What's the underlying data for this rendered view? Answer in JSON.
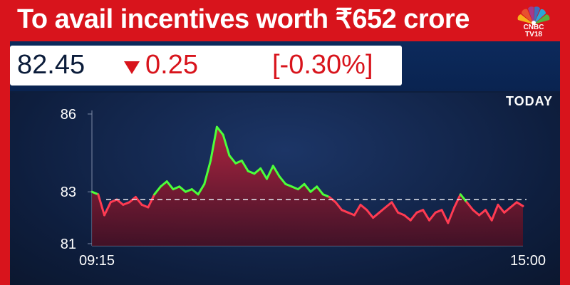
{
  "headline": "To avail incentives worth ₹652 crore",
  "brand": {
    "line1": "CNBC",
    "line2": "TV18"
  },
  "quote": {
    "price": "82.45",
    "change": "0.25",
    "change_pct": "[-0.30%]",
    "direction": "down",
    "down_color": "#d8141c",
    "up_color": "#4cff3a"
  },
  "chart_label": "TODAY",
  "chart_data": {
    "type": "area",
    "title": "",
    "xlabel": "",
    "ylabel": "",
    "ylim": [
      81,
      86
    ],
    "yticks": [
      "86",
      "83",
      "81"
    ],
    "xticks": [
      "09:15",
      "15:00"
    ],
    "reference_value": 82.7,
    "series": [
      {
        "x": [
          "09:15",
          "09:20",
          "09:25",
          "09:30",
          "09:35",
          "09:40",
          "09:45",
          "09:50",
          "09:55",
          "10:00",
          "10:05",
          "10:10",
          "10:15",
          "10:20",
          "10:25",
          "10:30",
          "10:35",
          "10:40",
          "10:45",
          "10:50",
          "10:55",
          "11:00",
          "11:05",
          "11:10",
          "11:15",
          "11:20",
          "11:25",
          "11:30",
          "11:35",
          "11:40",
          "11:45",
          "11:50",
          "11:55",
          "12:00",
          "12:05",
          "12:10",
          "12:15",
          "12:20",
          "12:25",
          "12:30",
          "12:35",
          "12:40",
          "12:45",
          "12:50",
          "12:55",
          "13:00",
          "13:05",
          "13:10",
          "13:15",
          "13:20",
          "13:25",
          "13:30",
          "13:35",
          "13:40",
          "13:45",
          "13:50",
          "13:55",
          "14:00",
          "14:05",
          "14:10",
          "14:15",
          "14:20",
          "14:25",
          "14:30",
          "14:35",
          "14:40",
          "14:45",
          "14:50",
          "14:55",
          "15:00"
        ],
        "values": [
          83.0,
          82.9,
          82.1,
          82.6,
          82.7,
          82.5,
          82.6,
          82.8,
          82.5,
          82.4,
          82.9,
          83.2,
          83.4,
          83.1,
          83.2,
          83.0,
          83.1,
          82.9,
          83.3,
          84.2,
          85.5,
          85.2,
          84.4,
          84.1,
          84.2,
          83.8,
          83.7,
          83.9,
          83.5,
          84.0,
          83.6,
          83.3,
          83.2,
          83.1,
          83.3,
          83.0,
          83.2,
          82.9,
          82.8,
          82.6,
          82.3,
          82.2,
          82.1,
          82.5,
          82.3,
          82.0,
          82.2,
          82.4,
          82.6,
          82.2,
          82.1,
          81.9,
          82.2,
          82.3,
          81.9,
          82.2,
          82.3,
          81.8,
          82.4,
          82.9,
          82.6,
          82.3,
          82.1,
          82.3,
          81.9,
          82.5,
          82.2,
          82.4,
          82.6,
          82.45
        ]
      }
    ],
    "grid": false,
    "colors": {
      "above": "#4cff3a",
      "below": "#ff3b52",
      "fill": "#8a1a30"
    }
  }
}
